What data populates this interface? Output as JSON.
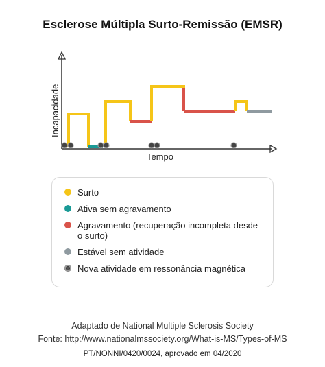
{
  "title": "Esclerose Múltipla Surto-Remissão (EMSR)",
  "axes": {
    "y_label": "Incapacidade",
    "x_label": "Tempo"
  },
  "colors": {
    "surto": "#f5c518",
    "ativa": "#1a9a96",
    "agravamento": "#d9534a",
    "estavel": "#8f9aa0",
    "axis": "#333333"
  },
  "legend": [
    {
      "label": "Surto",
      "color": "#f5c518",
      "icon": "circle-dot"
    },
    {
      "label": "Ativa sem agravamento",
      "color": "#1a9a96",
      "icon": "circle-dot"
    },
    {
      "label": "Agravamento (recuperação incompleta desde o surto)",
      "color": "#d9534a",
      "icon": "circle-dot"
    },
    {
      "label": "Estável sem atividade",
      "color": "#8f9aa0",
      "icon": "circle-dot"
    },
    {
      "label": "Nova atividade em ressonância magnética",
      "color": "#555555",
      "icon": "mri-activity-icon"
    }
  ],
  "footer": {
    "line1": "Adaptado de National Multiple Sclerosis Society",
    "line2": "Fonte: http://www.nationalmssociety.org/What-is-MS/Types-of-MS",
    "line3": "PT/NONNI/0420/0024, aprovado em 04/2020"
  }
}
